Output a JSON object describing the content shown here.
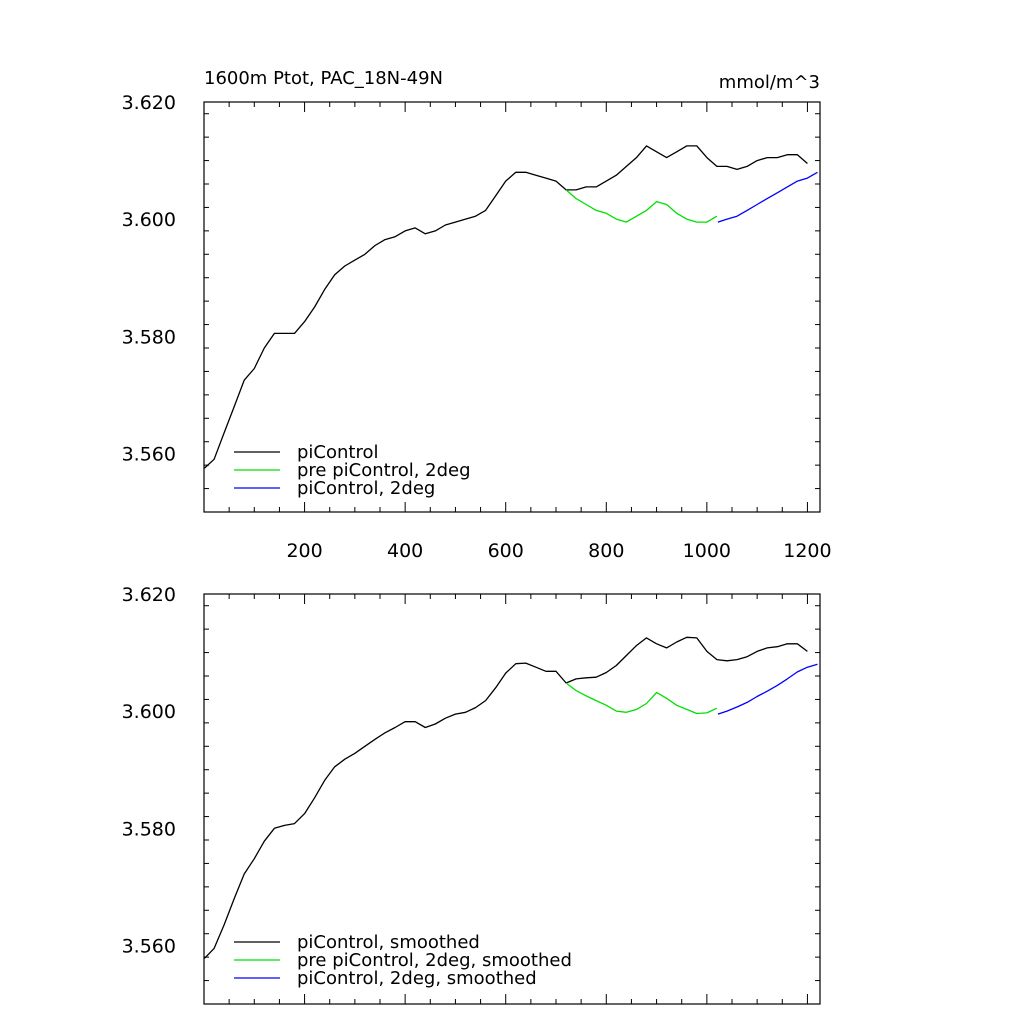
{
  "title_left": "1600m Ptot, PAC_18N-49N",
  "title_right": "mmol/m^3",
  "colors": {
    "piControl": "#000000",
    "pre": "#00e000",
    "twodeg": "#0000ff"
  },
  "chart_data": [
    {
      "type": "line",
      "panel": "top",
      "xlim": [
        0,
        1225
      ],
      "ylim": [
        3.55,
        3.62
      ],
      "x_ticks": [
        200,
        400,
        600,
        800,
        1000,
        1200
      ],
      "x_tick_labels": [
        "200",
        "400",
        "600",
        "800",
        "1000",
        "1200"
      ],
      "y_ticks": [
        3.56,
        3.58,
        3.6,
        3.62
      ],
      "y_tick_labels": [
        "3.560",
        "3.580",
        "3.600",
        "3.620"
      ],
      "legend_position": "bottom-left",
      "series": [
        {
          "name": "piControl",
          "color": "#000000",
          "x": [
            1,
            20,
            40,
            60,
            80,
            100,
            120,
            140,
            160,
            180,
            200,
            220,
            240,
            260,
            280,
            300,
            320,
            340,
            360,
            380,
            400,
            420,
            440,
            460,
            480,
            500,
            520,
            540,
            560,
            580,
            600,
            620,
            640,
            660,
            680,
            700,
            720,
            740,
            760,
            780,
            800,
            820,
            840,
            860,
            880,
            900,
            920,
            940,
            960,
            980,
            1000,
            1020,
            1040,
            1060,
            1080,
            1100,
            1120,
            1140,
            1160,
            1180,
            1200
          ],
          "y": [
            3.5575,
            3.559,
            3.5635,
            3.568,
            3.5725,
            3.5745,
            3.578,
            3.5805,
            3.5805,
            3.5805,
            3.5825,
            3.585,
            3.588,
            3.5905,
            3.592,
            3.593,
            3.594,
            3.5955,
            3.5965,
            3.597,
            3.598,
            3.5985,
            3.5975,
            3.598,
            3.599,
            3.5995,
            3.6,
            3.6005,
            3.6015,
            3.604,
            3.6065,
            3.608,
            3.608,
            3.6075,
            3.607,
            3.6065,
            3.605,
            3.605,
            3.6055,
            3.6055,
            3.6065,
            3.6075,
            3.609,
            3.6105,
            3.6125,
            3.6115,
            3.6105,
            3.6115,
            3.6125,
            3.6125,
            3.6105,
            3.609,
            3.609,
            3.6085,
            3.609,
            3.61,
            3.6105,
            3.6105,
            3.611,
            3.611,
            3.6095
          ]
        },
        {
          "name": "pre piControl, 2deg",
          "color": "#00e000",
          "x": [
            720,
            740,
            760,
            780,
            800,
            820,
            840,
            860,
            880,
            900,
            920,
            940,
            960,
            980,
            1000,
            1020
          ],
          "y": [
            3.605,
            3.6035,
            3.6025,
            3.6015,
            3.601,
            3.6,
            3.5995,
            3.6005,
            3.6015,
            3.603,
            3.6025,
            3.601,
            3.6,
            3.5995,
            3.5995,
            3.6005
          ]
        },
        {
          "name": "piControl, 2deg",
          "color": "#0000ff",
          "x": [
            1022,
            1040,
            1060,
            1080,
            1100,
            1120,
            1140,
            1160,
            1180,
            1200,
            1220
          ],
          "y": [
            3.5995,
            3.6,
            3.6005,
            3.6015,
            3.6025,
            3.6035,
            3.6045,
            3.6055,
            3.6065,
            3.607,
            3.608
          ]
        }
      ]
    },
    {
      "type": "line",
      "panel": "bottom",
      "xlim": [
        0,
        1225
      ],
      "ylim": [
        3.55,
        3.62
      ],
      "x_ticks": [
        200,
        400,
        600,
        800,
        1000,
        1200
      ],
      "x_tick_labels": [],
      "y_ticks": [
        3.56,
        3.58,
        3.6,
        3.62
      ],
      "y_tick_labels": [
        "3.560",
        "3.580",
        "3.600",
        "3.620"
      ],
      "legend_position": "bottom-left",
      "series": [
        {
          "name": "piControl, smoothed",
          "color": "#000000",
          "x": [
            1,
            20,
            40,
            60,
            80,
            100,
            120,
            140,
            160,
            180,
            200,
            220,
            240,
            260,
            280,
            300,
            320,
            340,
            360,
            380,
            400,
            420,
            440,
            460,
            480,
            500,
            520,
            540,
            560,
            580,
            600,
            620,
            640,
            660,
            680,
            700,
            720,
            740,
            760,
            780,
            800,
            820,
            840,
            860,
            880,
            900,
            920,
            940,
            960,
            980,
            1000,
            1020,
            1040,
            1060,
            1080,
            1100,
            1120,
            1140,
            1160,
            1180,
            1200
          ],
          "y": [
            3.5578,
            3.5595,
            3.5635,
            3.568,
            3.5722,
            3.5748,
            3.5778,
            3.58,
            3.5805,
            3.5808,
            3.5825,
            3.5852,
            3.5882,
            3.5905,
            3.5918,
            3.5928,
            3.594,
            3.5952,
            3.5963,
            3.5972,
            3.5982,
            3.5982,
            3.5972,
            3.5978,
            3.5988,
            3.5995,
            3.5998,
            3.6006,
            3.6018,
            3.604,
            3.6065,
            3.6081,
            3.6082,
            3.6075,
            3.6068,
            3.6068,
            3.6048,
            3.6055,
            3.6057,
            3.6058,
            3.6066,
            3.6078,
            3.6095,
            3.6112,
            3.6125,
            3.6115,
            3.6108,
            3.6118,
            3.6126,
            3.6125,
            3.6102,
            3.6088,
            3.6086,
            3.6088,
            3.6093,
            3.6102,
            3.6108,
            3.611,
            3.6115,
            3.6115,
            3.6102
          ]
        },
        {
          "name": "pre piControl, 2deg, smoothed",
          "color": "#00e000",
          "x": [
            720,
            740,
            760,
            780,
            800,
            820,
            840,
            860,
            880,
            900,
            920,
            940,
            960,
            980,
            1000,
            1020
          ],
          "y": [
            3.6048,
            3.6035,
            3.6026,
            3.6018,
            3.601,
            3.6,
            3.5998,
            3.6003,
            3.6013,
            3.6032,
            3.6022,
            3.601,
            3.6003,
            3.5996,
            3.5997,
            3.6005
          ]
        },
        {
          "name": "piControl, 2deg, smoothed",
          "color": "#0000ff",
          "x": [
            1022,
            1040,
            1060,
            1080,
            1100,
            1120,
            1140,
            1160,
            1180,
            1200,
            1220
          ],
          "y": [
            3.5995,
            3.6,
            3.6007,
            3.6015,
            3.6025,
            3.6034,
            3.6044,
            3.6055,
            3.6067,
            3.6075,
            3.608
          ]
        }
      ]
    }
  ]
}
